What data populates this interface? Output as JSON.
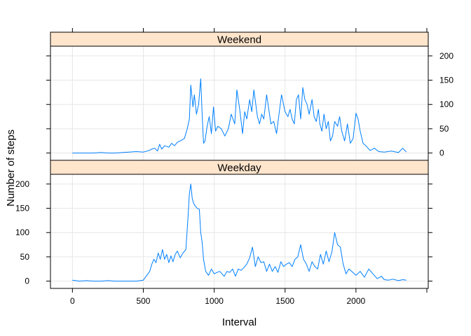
{
  "chart_data": {
    "type": "line",
    "xlabel": "Interval",
    "ylabel": "Number of steps",
    "xlim": [
      -155,
      2510
    ],
    "ylim": [
      -15,
      220
    ],
    "x_ticks": [
      0,
      500,
      1000,
      1500,
      2000
    ],
    "y_ticks": [
      0,
      50,
      100,
      150,
      200
    ],
    "grid": true,
    "colors": {
      "line": "#0080ff",
      "strip_fill": "#ffe5cc"
    },
    "panels": [
      {
        "label": "Weekend",
        "series": {
          "x": [
            0,
            50,
            100,
            150,
            200,
            250,
            300,
            350,
            400,
            450,
            500,
            540,
            560,
            580,
            600,
            615,
            630,
            650,
            680,
            700,
            720,
            740,
            760,
            790,
            810,
            825,
            835,
            850,
            860,
            875,
            890,
            905,
            915,
            925,
            935,
            950,
            965,
            980,
            995,
            1010,
            1025,
            1050,
            1075,
            1100,
            1120,
            1145,
            1160,
            1180,
            1200,
            1215,
            1230,
            1250,
            1265,
            1280,
            1305,
            1320,
            1335,
            1350,
            1370,
            1385,
            1400,
            1420,
            1440,
            1455,
            1475,
            1500,
            1520,
            1535,
            1550,
            1565,
            1580,
            1595,
            1610,
            1625,
            1640,
            1655,
            1670,
            1690,
            1705,
            1720,
            1735,
            1745,
            1760,
            1775,
            1790,
            1805,
            1820,
            1835,
            1850,
            1870,
            1885,
            1900,
            1920,
            1940,
            1960,
            1980,
            2000,
            2015,
            2030,
            2050,
            2070,
            2100,
            2130,
            2160,
            2200,
            2250,
            2300,
            2330,
            2355
          ],
          "y": [
            0,
            0,
            0,
            0,
            1,
            0,
            0,
            1,
            2,
            3,
            2,
            5,
            8,
            10,
            4,
            18,
            8,
            15,
            12,
            20,
            15,
            22,
            25,
            30,
            50,
            70,
            140,
            95,
            120,
            80,
            100,
            153,
            80,
            20,
            25,
            55,
            75,
            40,
            95,
            45,
            55,
            50,
            35,
            50,
            80,
            60,
            130,
            90,
            40,
            85,
            70,
            110,
            85,
            130,
            75,
            60,
            80,
            70,
            120,
            90,
            60,
            65,
            40,
            75,
            120,
            85,
            75,
            90,
            70,
            60,
            110,
            120,
            70,
            135,
            110,
            100,
            80,
            110,
            75,
            65,
            90,
            60,
            45,
            80,
            50,
            65,
            25,
            35,
            65,
            55,
            75,
            45,
            25,
            60,
            20,
            30,
            82,
            70,
            45,
            20,
            15,
            5,
            10,
            3,
            2,
            4,
            1,
            10,
            2
          ]
        }
      },
      {
        "label": "Weekday",
        "series": {
          "x": [
            0,
            50,
            100,
            150,
            200,
            250,
            300,
            350,
            400,
            450,
            500,
            525,
            545,
            560,
            575,
            590,
            605,
            620,
            635,
            650,
            665,
            680,
            695,
            710,
            725,
            740,
            760,
            780,
            800,
            815,
            825,
            835,
            845,
            855,
            865,
            880,
            895,
            905,
            915,
            925,
            940,
            960,
            980,
            1000,
            1020,
            1040,
            1070,
            1090,
            1110,
            1130,
            1150,
            1170,
            1190,
            1210,
            1230,
            1250,
            1270,
            1290,
            1310,
            1330,
            1350,
            1370,
            1390,
            1410,
            1430,
            1450,
            1470,
            1490,
            1510,
            1530,
            1550,
            1570,
            1590,
            1610,
            1630,
            1650,
            1670,
            1690,
            1710,
            1730,
            1750,
            1770,
            1790,
            1810,
            1830,
            1850,
            1870,
            1890,
            1910,
            1930,
            1950,
            1970,
            2000,
            2030,
            2060,
            2090,
            2120,
            2150,
            2180,
            2200,
            2230,
            2260,
            2300,
            2330,
            2355
          ],
          "y": [
            2,
            0,
            1,
            0,
            0,
            1,
            0,
            0,
            0,
            0,
            2,
            12,
            20,
            35,
            45,
            38,
            58,
            45,
            65,
            45,
            55,
            38,
            52,
            40,
            55,
            62,
            48,
            58,
            65,
            130,
            180,
            200,
            170,
            160,
            155,
            150,
            148,
            100,
            80,
            45,
            20,
            12,
            25,
            15,
            18,
            20,
            10,
            20,
            18,
            25,
            10,
            25,
            22,
            28,
            35,
            48,
            70,
            30,
            50,
            38,
            40,
            20,
            35,
            20,
            30,
            18,
            40,
            30,
            35,
            38,
            30,
            45,
            50,
            75,
            45,
            35,
            20,
            40,
            30,
            25,
            55,
            35,
            62,
            40,
            60,
            100,
            75,
            70,
            35,
            15,
            25,
            20,
            12,
            20,
            8,
            25,
            15,
            5,
            10,
            3,
            2,
            4,
            1,
            3,
            2
          ]
        }
      }
    ]
  }
}
